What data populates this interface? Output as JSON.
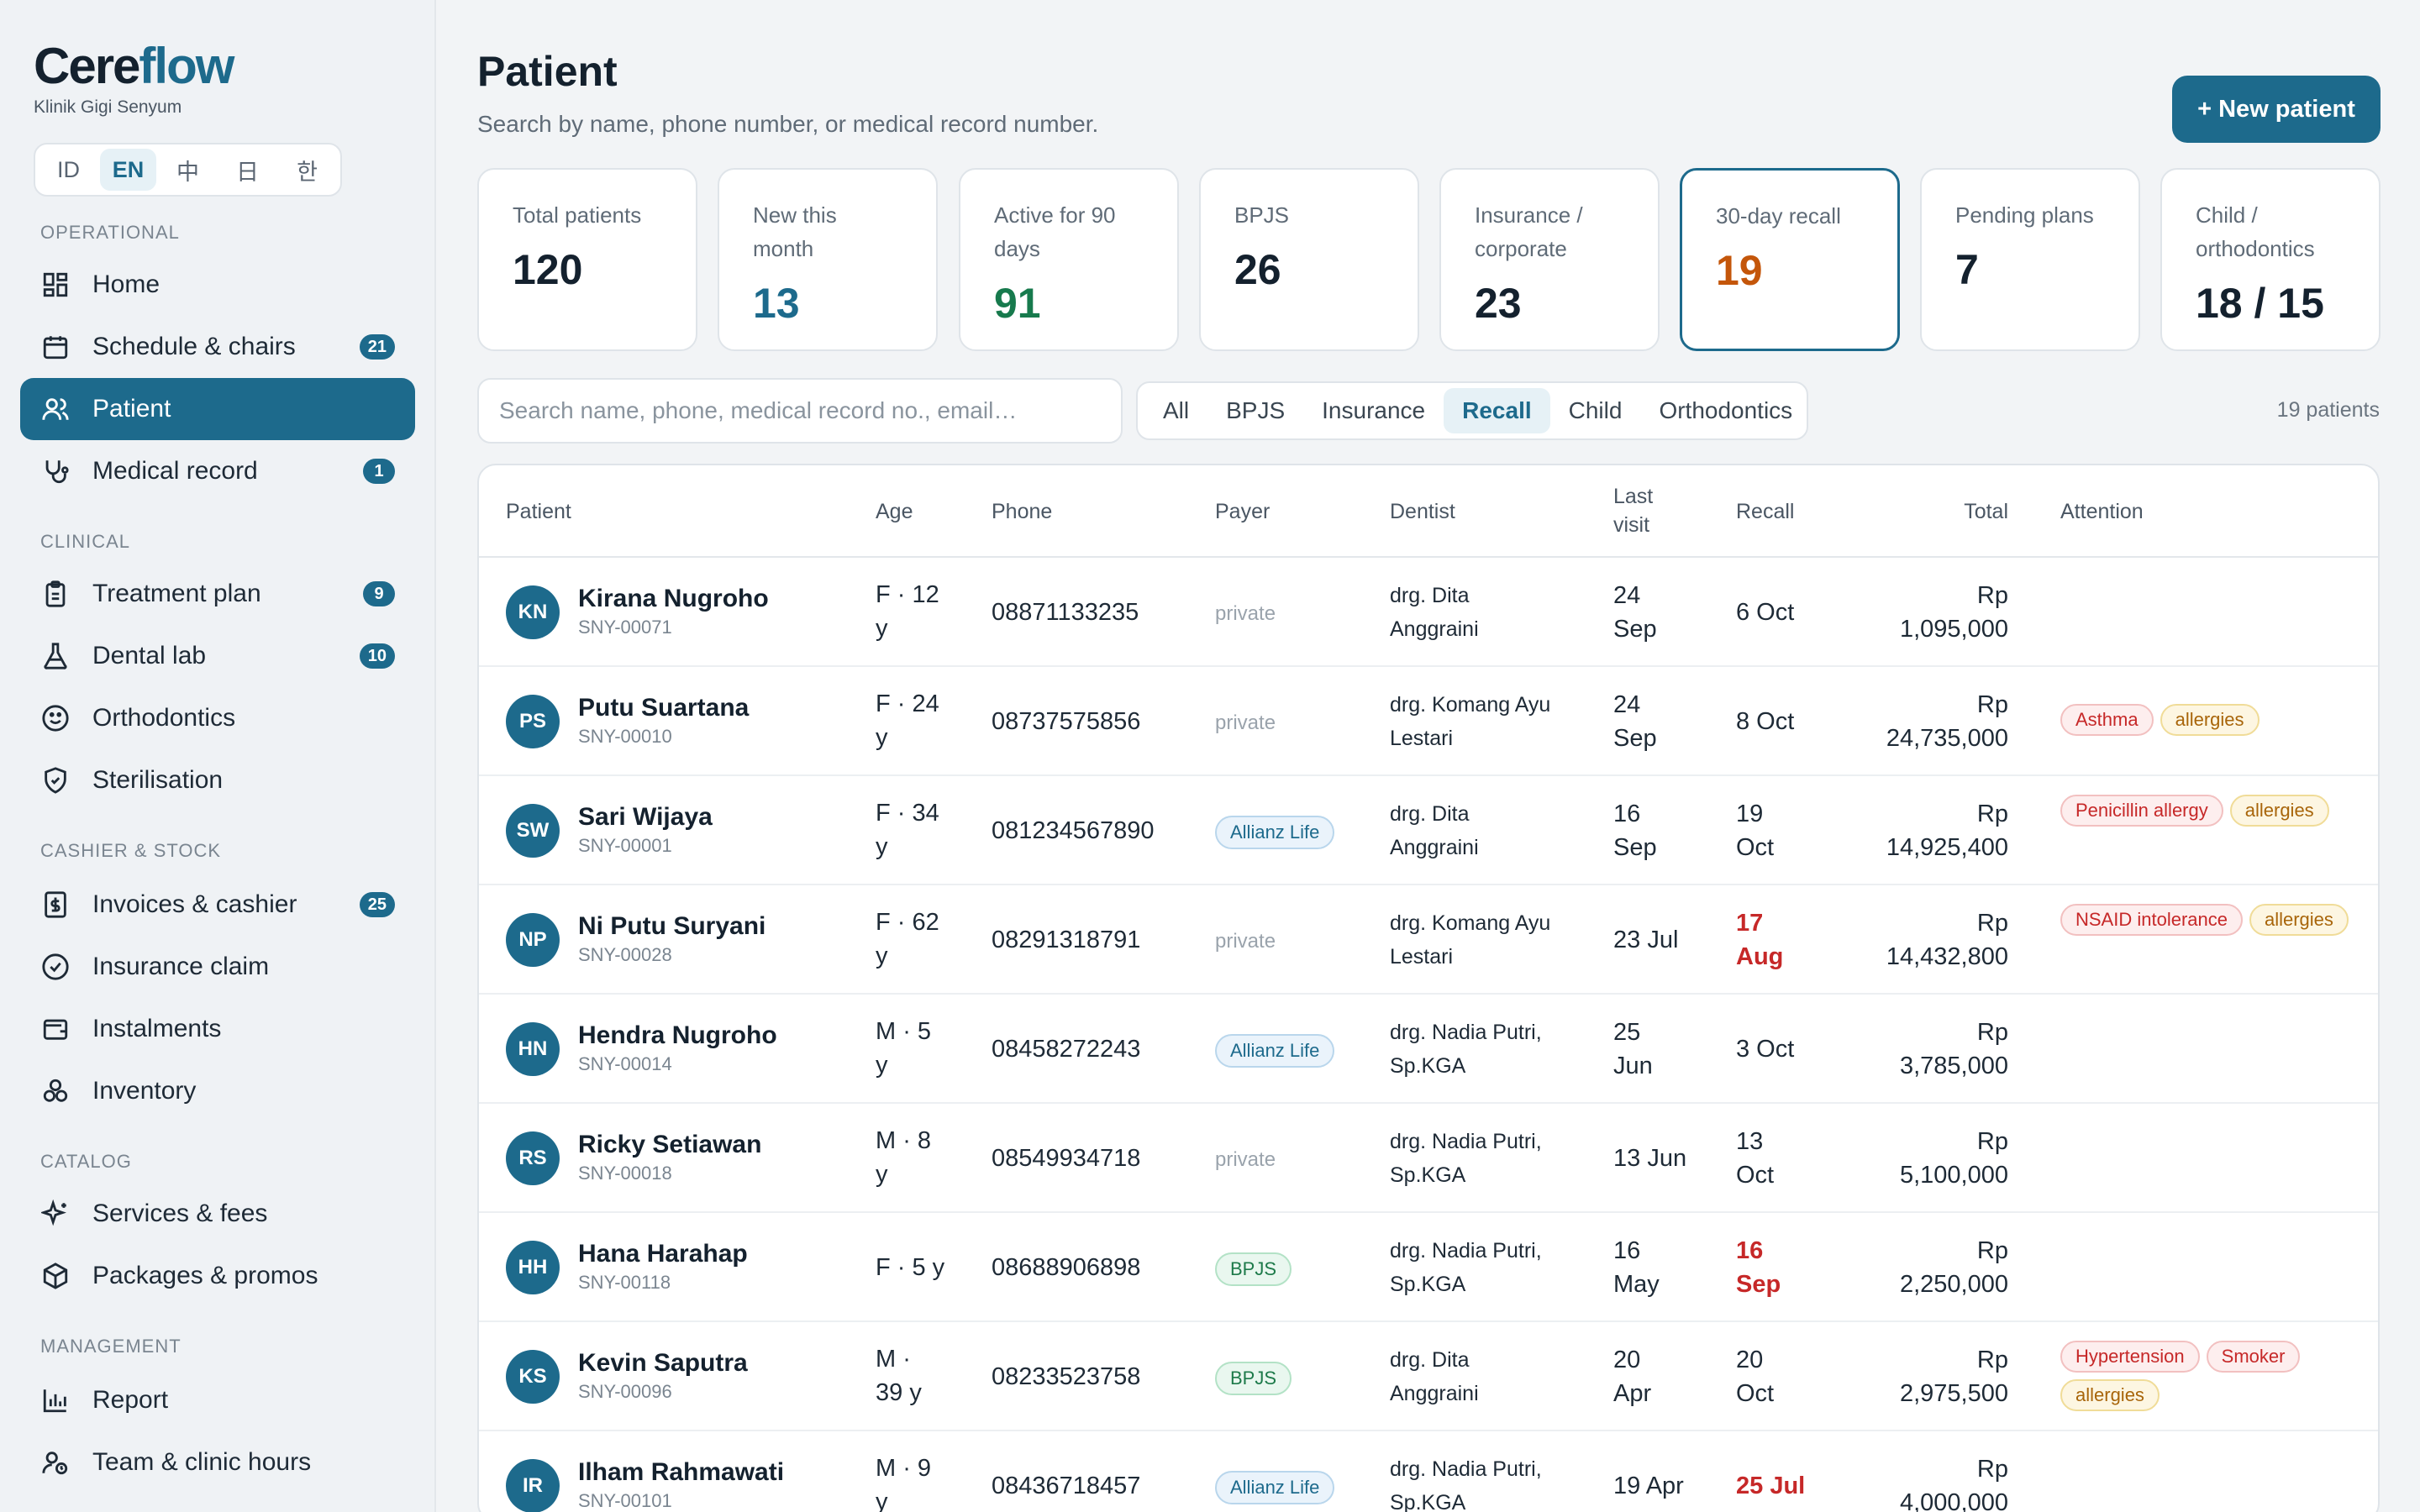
{
  "brand": {
    "name_main": "Cere",
    "name_accent": "flow",
    "subtitle": "Klinik Gigi Senyum"
  },
  "languages": [
    {
      "label": "ID",
      "active": false
    },
    {
      "label": "EN",
      "active": true
    },
    {
      "label": "中",
      "active": false
    },
    {
      "label": "日",
      "active": false
    },
    {
      "label": "한",
      "active": false
    }
  ],
  "sidebar": {
    "sections": {
      "operational": "OPERATIONAL",
      "clinical": "CLINICAL",
      "cashier": "CASHIER & STOCK",
      "catalog": "CATALOG",
      "management": "MANAGEMENT"
    },
    "items": {
      "home": {
        "label": "Home",
        "icon": "grid-icon"
      },
      "schedule": {
        "label": "Schedule & chairs",
        "icon": "calendar-icon",
        "badge": "21"
      },
      "patient": {
        "label": "Patient",
        "icon": "users-icon"
      },
      "medical": {
        "label": "Medical record",
        "icon": "stethoscope-icon",
        "badge": "1"
      },
      "treatment": {
        "label": "Treatment plan",
        "icon": "clipboard-icon",
        "badge": "9"
      },
      "lab": {
        "label": "Dental lab",
        "icon": "flask-icon",
        "badge": "10"
      },
      "ortho": {
        "label": "Orthodontics",
        "icon": "smile-icon"
      },
      "steril": {
        "label": "Sterilisation",
        "icon": "shield-icon"
      },
      "invoices": {
        "label": "Invoices & cashier",
        "icon": "receipt-icon",
        "badge": "25"
      },
      "claim": {
        "label": "Insurance claim",
        "icon": "check-circle-icon"
      },
      "instal": {
        "label": "Instalments",
        "icon": "wallet-icon"
      },
      "inventory": {
        "label": "Inventory",
        "icon": "boxes-icon"
      },
      "services": {
        "label": "Services & fees",
        "icon": "sparkles-icon"
      },
      "packages": {
        "label": "Packages & promos",
        "icon": "package-icon"
      },
      "report": {
        "label": "Report",
        "icon": "bar-chart-icon"
      },
      "team": {
        "label": "Team & clinic hours",
        "icon": "user-clock-icon"
      }
    }
  },
  "header": {
    "title": "Patient",
    "subtitle": "Search by name, phone number, or medical record number.",
    "new_button": "+ New patient"
  },
  "stats": [
    {
      "label": "Total patients",
      "value": "120",
      "color": "#14212e"
    },
    {
      "label": "New this month",
      "value": "13",
      "color": "#1d6a8c"
    },
    {
      "label": "Active for 90 days",
      "value": "91",
      "color": "#177a4d"
    },
    {
      "label": "BPJS",
      "value": "26",
      "color": "#14212e"
    },
    {
      "label": "Insurance / corporate",
      "value": "23",
      "color": "#14212e"
    },
    {
      "label": "30-day recall",
      "value": "19",
      "color": "#c4560a"
    },
    {
      "label": "Pending plans",
      "value": "7",
      "color": "#14212e"
    },
    {
      "label": "Child / orthodontics",
      "value": "18 / 15",
      "color": "#14212e"
    }
  ],
  "search": {
    "placeholder": "Search name, phone, medical record no., email…"
  },
  "filters": [
    {
      "label": "All",
      "active": false
    },
    {
      "label": "BPJS",
      "active": false
    },
    {
      "label": "Insurance",
      "active": false
    },
    {
      "label": "Recall",
      "active": true
    },
    {
      "label": "Child",
      "active": false
    },
    {
      "label": "Orthodontics",
      "active": false
    }
  ],
  "result_count": "19 patients",
  "table": {
    "columns": {
      "patient": "Patient",
      "age": "Age",
      "phone": "Phone",
      "payer": "Payer",
      "dentist": "Dentist",
      "last_visit_1": "Last",
      "last_visit_2": "visit",
      "recall": "Recall",
      "total": "Total",
      "attention": "Attention"
    },
    "rows": [
      {
        "initials": "KN",
        "name": "Kirana Nugroho",
        "mrn": "SNY-00071",
        "age_1": "F · 12",
        "age_2": "y",
        "phone": "08871133235",
        "payer": "private",
        "payer_type": "private",
        "dentist_1": "drg. Dita",
        "dentist_2": "Anggraini",
        "last_1": "24",
        "last_2": "Sep",
        "recall_1": "6 Oct",
        "recall_2": "",
        "recall_late": false,
        "total_1": "Rp",
        "total_2": "1,095,000",
        "tags": []
      },
      {
        "initials": "PS",
        "name": "Putu Suartana",
        "mrn": "SNY-00010",
        "age_1": "F · 24",
        "age_2": "y",
        "phone": "08737575856",
        "payer": "private",
        "payer_type": "private",
        "dentist_1": "drg. Komang Ayu",
        "dentist_2": "Lestari",
        "last_1": "24",
        "last_2": "Sep",
        "recall_1": "8 Oct",
        "recall_2": "",
        "recall_late": false,
        "total_1": "Rp",
        "total_2": "24,735,000",
        "tags": [
          {
            "text": "Asthma",
            "kind": "red"
          },
          {
            "text": "allergies",
            "kind": "amber"
          }
        ]
      },
      {
        "initials": "SW",
        "name": "Sari Wijaya",
        "mrn": "SNY-00001",
        "age_1": "F · 34",
        "age_2": "y",
        "phone": "081234567890",
        "payer": "Allianz Life",
        "payer_type": "ins",
        "dentist_1": "drg. Dita",
        "dentist_2": "Anggraini",
        "last_1": "16",
        "last_2": "Sep",
        "recall_1": "19",
        "recall_2": "Oct",
        "recall_late": false,
        "total_1": "Rp",
        "total_2": "14,925,400",
        "tags": [
          {
            "text": "Penicillin allergy",
            "kind": "red"
          },
          {
            "text": "allergies",
            "kind": "amber"
          }
        ]
      },
      {
        "initials": "NP",
        "name": "Ni Putu Suryani",
        "mrn": "SNY-00028",
        "age_1": "F · 62",
        "age_2": "y",
        "phone": "08291318791",
        "payer": "private",
        "payer_type": "private",
        "dentist_1": "drg. Komang Ayu",
        "dentist_2": "Lestari",
        "last_1": "23 Jul",
        "last_2": "",
        "recall_1": "17",
        "recall_2": "Aug",
        "recall_late": true,
        "total_1": "Rp",
        "total_2": "14,432,800",
        "tags": [
          {
            "text": "NSAID intolerance",
            "kind": "red"
          },
          {
            "text": "allergies",
            "kind": "amber"
          }
        ]
      },
      {
        "initials": "HN",
        "name": "Hendra Nugroho",
        "mrn": "SNY-00014",
        "age_1": "M · 5",
        "age_2": "y",
        "phone": "08458272243",
        "payer": "Allianz Life",
        "payer_type": "ins",
        "dentist_1": "drg. Nadia Putri,",
        "dentist_2": "Sp.KGA",
        "last_1": "25",
        "last_2": "Jun",
        "recall_1": "3 Oct",
        "recall_2": "",
        "recall_late": false,
        "total_1": "Rp",
        "total_2": "3,785,000",
        "tags": []
      },
      {
        "initials": "RS",
        "name": "Ricky Setiawan",
        "mrn": "SNY-00018",
        "age_1": "M · 8",
        "age_2": "y",
        "phone": "08549934718",
        "payer": "private",
        "payer_type": "private",
        "dentist_1": "drg. Nadia Putri,",
        "dentist_2": "Sp.KGA",
        "last_1": "13 Jun",
        "last_2": "",
        "recall_1": "13",
        "recall_2": "Oct",
        "recall_late": false,
        "total_1": "Rp",
        "total_2": "5,100,000",
        "tags": []
      },
      {
        "initials": "HH",
        "name": "Hana Harahap",
        "mrn": "SNY-00118",
        "age_1": "F · 5 y",
        "age_2": "",
        "phone": "08688906898",
        "payer": "BPJS",
        "payer_type": "bpjs",
        "dentist_1": "drg. Nadia Putri,",
        "dentist_2": "Sp.KGA",
        "last_1": "16",
        "last_2": "May",
        "recall_1": "16",
        "recall_2": "Sep",
        "recall_late": true,
        "total_1": "Rp",
        "total_2": "2,250,000",
        "tags": []
      },
      {
        "initials": "KS",
        "name": "Kevin Saputra",
        "mrn": "SNY-00096",
        "age_1": "M ·",
        "age_2": "39 y",
        "phone": "08233523758",
        "payer": "BPJS",
        "payer_type": "bpjs",
        "dentist_1": "drg. Dita",
        "dentist_2": "Anggraini",
        "last_1": "20",
        "last_2": "Apr",
        "recall_1": "20",
        "recall_2": "Oct",
        "recall_late": false,
        "total_1": "Rp",
        "total_2": "2,975,500",
        "tags": [
          {
            "text": "Hypertension",
            "kind": "red"
          },
          {
            "text": "Smoker",
            "kind": "red"
          },
          {
            "text": "allergies",
            "kind": "amber"
          }
        ]
      },
      {
        "initials": "IR",
        "name": "Ilham Rahmawati",
        "mrn": "SNY-00101",
        "age_1": "M · 9",
        "age_2": "y",
        "phone": "08436718457",
        "payer": "Allianz Life",
        "payer_type": "ins",
        "dentist_1": "drg. Nadia Putri,",
        "dentist_2": "Sp.KGA",
        "last_1": "19 Apr",
        "last_2": "",
        "recall_1": "25 Jul",
        "recall_2": "",
        "recall_late": true,
        "total_1": "Rp",
        "total_2": "4,000,000",
        "tags": []
      }
    ]
  },
  "colors": {
    "accent": "#1d6a8c",
    "danger": "#c62828",
    "warning": "#c4560a",
    "success": "#177a4d"
  }
}
